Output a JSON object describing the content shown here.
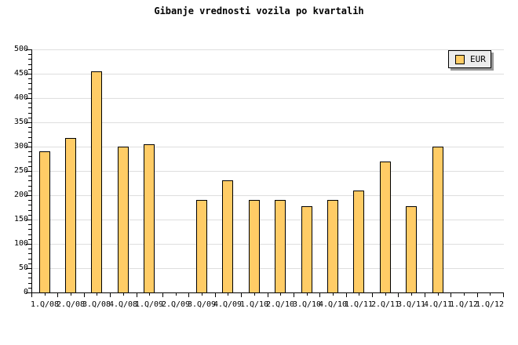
{
  "title": "Gibanje vrednosti vozila po kvartalih",
  "legend": {
    "label": "EUR"
  },
  "colors": {
    "background": "#FFFFFF",
    "bar_fill": "#FFCC66",
    "bar_border": "#000000",
    "grid": "#DEDEDE",
    "axis": "#000000",
    "text": "#000000",
    "legend_bg": "#ECECEC",
    "legend_border": "#000000",
    "legend_shadow": "#999999"
  },
  "chart_data": {
    "type": "bar",
    "title": "Gibanje vrednosti vozila po kvartalih",
    "xlabel": "",
    "ylabel": "",
    "categories": [
      "1.Q/08",
      "2.Q/08",
      "3.Q/08",
      "4.Q/08",
      "1.Q/09",
      "2.Q/09",
      "3.Q/09",
      "4.Q/09",
      "1.Q/10",
      "2.Q/10",
      "3.Q/10",
      "4.Q/10",
      "1.Q/11",
      "2.Q/11",
      "3.Q/11",
      "4.Q/11",
      "1.Q/12",
      "1.Q/12"
    ],
    "series": [
      {
        "name": "EUR",
        "values": [
          290,
          318,
          455,
          300,
          305,
          null,
          190,
          230,
          190,
          190,
          178,
          190,
          210,
          270,
          178,
          300,
          null,
          null
        ]
      }
    ],
    "ylim": [
      0,
      500
    ],
    "ytick_step": 50,
    "yminor_step": 10,
    "grid": "horizontal",
    "legend_position": "top-right"
  }
}
